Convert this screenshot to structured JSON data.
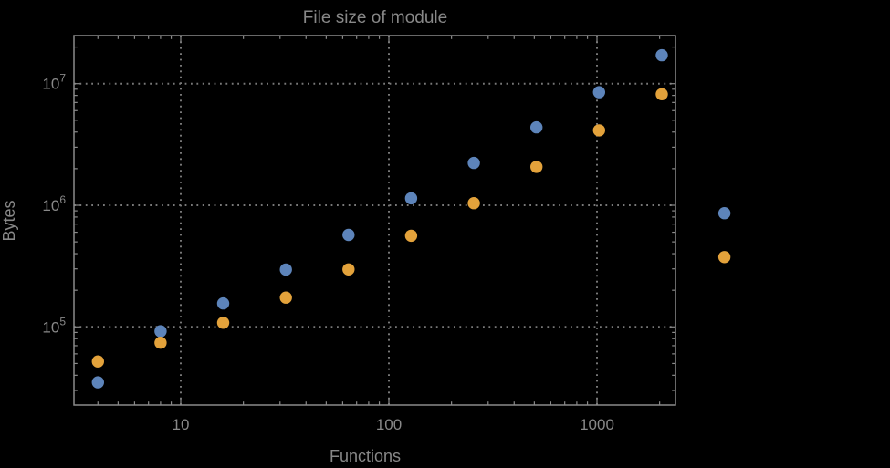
{
  "chart_data": {
    "type": "scatter",
    "title": "File size of module",
    "xlabel": "Functions",
    "ylabel": "Bytes",
    "x_scale": "log",
    "y_scale": "log",
    "x_range": [
      3.07,
      2380
    ],
    "y_range": [
      22700,
      24800000
    ],
    "grid": {
      "style": "dotted",
      "color": "#787878",
      "major_only": true
    },
    "frame": true,
    "legend": "none",
    "background": "#000000",
    "marker_diameter_px": 13,
    "x": [
      4,
      8,
      16,
      32,
      64,
      128,
      256,
      512,
      1024,
      2048,
      4096
    ],
    "series": [
      {
        "name": "blue-series",
        "color": "#5d84ba",
        "values": [
          35000,
          92000,
          156000,
          296000,
          570000,
          1140000,
          2230000,
          4370000,
          8500000,
          17100000,
          860000
        ]
      },
      {
        "name": "orange-series",
        "color": "#e3a23b",
        "values": [
          52000,
          74000,
          108000,
          174000,
          297000,
          562000,
          1040000,
          2070000,
          4130000,
          8190000,
          375000
        ]
      }
    ],
    "x_ticks": {
      "major": [
        10,
        100,
        1000
      ],
      "labels": [
        "10",
        "100",
        "1000"
      ],
      "minor": [
        4,
        5,
        6,
        7,
        8,
        9,
        20,
        30,
        40,
        50,
        60,
        70,
        80,
        90,
        200,
        300,
        400,
        500,
        600,
        700,
        800,
        900,
        2000
      ]
    },
    "y_ticks": {
      "major": [
        100000,
        1000000,
        10000000
      ],
      "labels": [
        {
          "base": "10",
          "exp": "5"
        },
        {
          "base": "10",
          "exp": "6"
        },
        {
          "base": "10",
          "exp": "7"
        }
      ],
      "minor": [
        30000,
        40000,
        50000,
        60000,
        70000,
        80000,
        90000,
        200000,
        300000,
        400000,
        500000,
        600000,
        700000,
        800000,
        900000,
        2000000,
        3000000,
        4000000,
        5000000,
        6000000,
        7000000,
        8000000,
        9000000,
        20000000
      ]
    },
    "colors": {
      "text": "#888888",
      "frame": "#8a8a8a",
      "grid": "#787878",
      "series1": "#5d84ba",
      "series2": "#e3a23b",
      "background": "#000000"
    }
  }
}
